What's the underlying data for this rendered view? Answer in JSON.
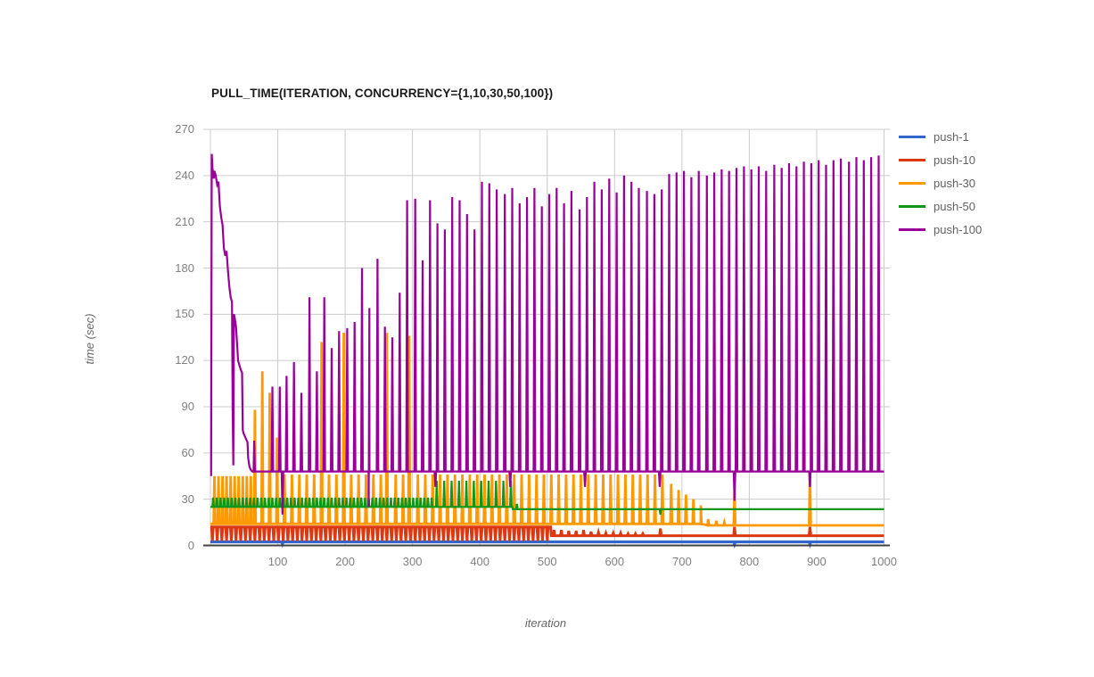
{
  "chart_data": {
    "type": "line",
    "title": "PULL_TIME(ITERATION, CONCURRENCY={1,10,30,50,100})",
    "xlabel": "iteration",
    "ylabel": "time (sec)",
    "xlim": [
      0,
      1000
    ],
    "ylim": [
      0,
      270
    ],
    "xticks": [
      100,
      200,
      300,
      400,
      500,
      600,
      700,
      800,
      900,
      1000
    ],
    "yticks": [
      0,
      30,
      60,
      90,
      120,
      150,
      180,
      210,
      240,
      270
    ],
    "grid": true,
    "legend_position": "right",
    "background_color": "#ffffff",
    "gridline_color": "#cccccc",
    "axis_line_color": "#424242",
    "tick_text_color": "#808080",
    "axis_title_color": "#666666",
    "title_color": "#1a1a1a",
    "series": [
      {
        "name": "push-1",
        "color": "#3366cc",
        "width": 3.2,
        "halfwidth": 1.2,
        "baseline_segments": [
          [
            0,
            1000,
            2.3
          ]
        ],
        "dips": [
          [
            107,
            1
          ],
          [
            778,
            0.8
          ],
          [
            890,
            0.8
          ]
        ]
      },
      {
        "name": "push-10",
        "color": "#dc3912",
        "width": 3,
        "halfwidth": 1.3,
        "baseline_segments": [
          [
            0,
            505,
            12
          ],
          [
            506,
            1000,
            6.3
          ]
        ],
        "dip_patterns": [
          {
            "start": 3,
            "end": 500,
            "step": 7,
            "low": 3
          }
        ],
        "spikes": [
          [
            510,
            10
          ],
          [
            521,
            10
          ],
          [
            532,
            9.5
          ],
          [
            543,
            9.5
          ],
          [
            554,
            10
          ],
          [
            565,
            9
          ],
          [
            576,
            8.5
          ],
          [
            587,
            8
          ],
          [
            598,
            8
          ],
          [
            609,
            8
          ],
          [
            620,
            7.5
          ],
          [
            631,
            7.5
          ],
          [
            642,
            7.5
          ],
          [
            668,
            11
          ],
          [
            778,
            12
          ],
          [
            890,
            12
          ]
        ]
      },
      {
        "name": "push-30",
        "color": "#ff9900",
        "width": 2.8,
        "halfwidth": 1.2,
        "baseline_segments": [
          [
            0,
            728,
            14
          ],
          [
            729,
            1000,
            13
          ]
        ],
        "spike_patterns": [
          {
            "start": 6,
            "end": 62,
            "step": 6,
            "peak": 45
          },
          {
            "start": 110,
            "end": 674,
            "step": 11,
            "peak": 46
          }
        ],
        "spikes": [
          [
            66,
            88
          ],
          [
            77,
            113
          ],
          [
            88,
            99
          ],
          [
            99,
            70
          ],
          [
            165,
            132
          ],
          [
            198,
            138
          ],
          [
            262,
            138
          ],
          [
            295,
            136
          ],
          [
            684,
            40
          ],
          [
            695,
            36
          ],
          [
            706,
            33
          ],
          [
            717,
            30
          ],
          [
            728,
            26
          ],
          [
            739,
            17
          ],
          [
            751,
            16
          ],
          [
            763,
            15
          ],
          [
            778,
            35
          ],
          [
            890,
            48
          ]
        ]
      },
      {
        "name": "push-50",
        "color": "#109618",
        "width": 2.2,
        "halfwidth": 1.1,
        "baseline_segments": [
          [
            0,
            448,
            25
          ],
          [
            449,
            1000,
            23.5
          ]
        ],
        "spike_patterns": [
          {
            "start": 4,
            "end": 330,
            "step": 5.5,
            "peak": 31
          },
          {
            "start": 336,
            "end": 446,
            "step": 11,
            "peak": 42
          }
        ],
        "spikes": [
          [
            455,
            27
          ]
        ],
        "dips": [
          [
            668,
            20
          ]
        ]
      },
      {
        "name": "push-100",
        "color": "#990099",
        "width": 2.2,
        "halfwidth": 1.2,
        "points": [
          [
            1,
            45
          ],
          [
            2,
            254
          ],
          [
            3,
            245
          ],
          [
            5,
            238
          ],
          [
            6,
            243
          ],
          [
            8,
            240
          ],
          [
            10,
            234
          ],
          [
            12,
            236
          ],
          [
            13,
            228
          ],
          [
            14,
            220
          ],
          [
            16,
            213
          ],
          [
            18,
            208
          ],
          [
            20,
            193
          ],
          [
            22,
            188
          ],
          [
            24,
            191
          ],
          [
            26,
            179
          ],
          [
            28,
            168
          ],
          [
            30,
            161
          ],
          [
            32,
            158
          ],
          [
            33,
            90
          ],
          [
            34,
            52
          ],
          [
            35,
            150
          ],
          [
            36,
            148
          ],
          [
            38,
            142
          ],
          [
            40,
            128
          ],
          [
            41,
            120
          ],
          [
            43,
            117
          ],
          [
            45,
            114
          ],
          [
            47,
            112
          ],
          [
            48,
            75
          ],
          [
            49,
            73
          ],
          [
            51,
            71
          ],
          [
            53,
            69
          ],
          [
            55,
            67
          ],
          [
            56,
            57
          ],
          [
            58,
            51
          ],
          [
            60,
            49
          ],
          [
            62,
            48
          ],
          [
            64,
            48
          ],
          [
            65,
            68
          ],
          [
            66,
            48
          ]
        ],
        "baseline_segments": [
          [
            67,
            1000,
            48
          ]
        ],
        "spikes": [
          [
            92,
            103
          ],
          [
            103,
            103
          ],
          [
            113,
            110
          ],
          [
            124,
            119
          ],
          [
            135,
            99
          ],
          [
            147,
            161
          ],
          [
            158,
            113
          ],
          [
            169,
            161
          ],
          [
            180,
            128
          ],
          [
            191,
            139
          ],
          [
            203,
            141
          ],
          [
            214,
            145
          ],
          [
            225,
            180
          ],
          [
            236,
            154
          ],
          [
            248,
            186
          ],
          [
            259,
            142
          ],
          [
            270,
            135
          ],
          [
            281,
            164
          ],
          [
            292,
            224
          ],
          [
            304,
            225
          ],
          [
            315,
            185
          ],
          [
            326,
            224
          ],
          [
            337,
            209
          ],
          [
            348,
            205
          ],
          [
            359,
            226
          ],
          [
            370,
            224
          ],
          [
            381,
            215
          ],
          [
            392,
            205
          ],
          [
            403,
            236
          ],
          [
            414,
            235
          ],
          [
            425,
            231
          ],
          [
            437,
            228
          ],
          [
            448,
            232
          ],
          [
            459,
            222
          ],
          [
            470,
            226
          ],
          [
            481,
            232
          ],
          [
            492,
            220
          ],
          [
            503,
            228
          ],
          [
            514,
            232
          ],
          [
            525,
            222
          ],
          [
            536,
            230
          ],
          [
            548,
            218
          ],
          [
            559,
            226
          ],
          [
            570,
            236
          ],
          [
            581,
            231
          ],
          [
            592,
            238
          ],
          [
            603,
            229
          ],
          [
            614,
            240
          ],
          [
            625,
            236
          ],
          [
            636,
            232
          ],
          [
            648,
            230
          ],
          [
            659,
            228
          ],
          [
            670,
            231
          ],
          [
            681,
            241
          ],
          [
            692,
            242
          ],
          [
            703,
            243
          ],
          [
            714,
            239
          ],
          [
            725,
            243
          ],
          [
            737,
            240
          ],
          [
            748,
            242
          ],
          [
            759,
            244
          ],
          [
            770,
            243
          ],
          [
            781,
            245
          ],
          [
            792,
            246
          ],
          [
            803,
            244
          ],
          [
            814,
            246
          ],
          [
            825,
            243
          ],
          [
            837,
            247
          ],
          [
            848,
            245
          ],
          [
            859,
            248
          ],
          [
            870,
            246
          ],
          [
            881,
            249
          ],
          [
            892,
            248
          ],
          [
            903,
            250
          ],
          [
            914,
            247
          ],
          [
            925,
            250
          ],
          [
            936,
            251
          ],
          [
            948,
            249
          ],
          [
            959,
            252
          ],
          [
            970,
            250
          ],
          [
            981,
            252
          ],
          [
            992,
            253
          ]
        ],
        "dips": [
          [
            107,
            20
          ],
          [
            235,
            25
          ],
          [
            334,
            38
          ],
          [
            445,
            38
          ],
          [
            556,
            38
          ],
          [
            667,
            38
          ],
          [
            778,
            29
          ],
          [
            890,
            38
          ]
        ]
      }
    ]
  }
}
